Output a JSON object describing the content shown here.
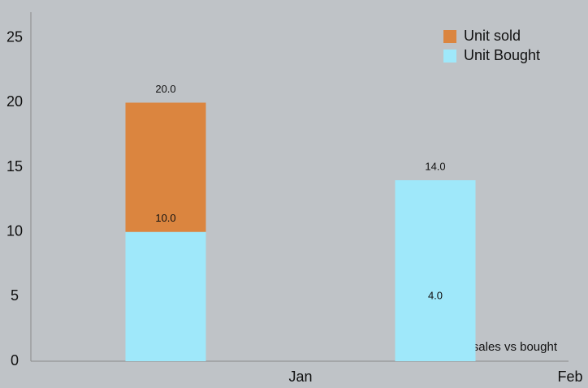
{
  "chart_data": {
    "type": "bar",
    "categories": [
      "Jan",
      "Feb"
    ],
    "series": [
      {
        "name": "Unit sold",
        "color": "#db853f",
        "values": [
          20,
          4
        ],
        "value_labels": [
          "20.0",
          "4.0"
        ]
      },
      {
        "name": "Unit Bought",
        "color": "#9fe8fa",
        "values": [
          10,
          14
        ],
        "value_labels": [
          "10.0",
          "14.0"
        ]
      }
    ],
    "ylim": [
      0,
      27
    ],
    "yticks": [
      0,
      5,
      10,
      15,
      20,
      25
    ],
    "grid": false,
    "legend": "top-right",
    "description": "sales vs bought"
  }
}
